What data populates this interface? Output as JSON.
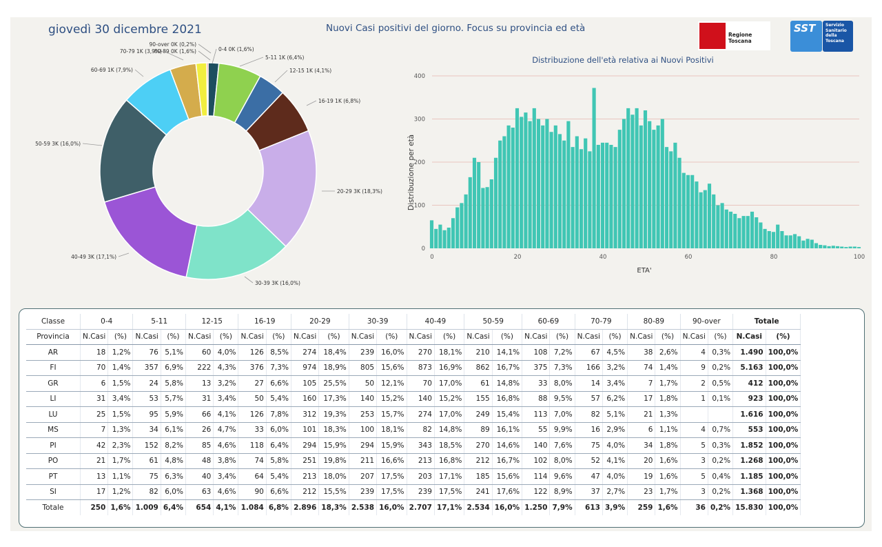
{
  "header": {
    "date": "giovedì 30 dicembre 2021",
    "title": "Nuovi Casi positivi del giorno. Focus su provincia ed età",
    "logo_regione": "Regione Toscana",
    "logo_sst_mark": "SST",
    "logo_sst_lines": [
      "Servizio",
      "Sanitario",
      "della",
      "Toscana"
    ]
  },
  "chart_data": [
    {
      "type": "pie",
      "title": "",
      "slices": [
        {
          "label": "0-4 0K (1,6%)",
          "value": 1.6,
          "color": "#1d4e5f"
        },
        {
          "label": "5-11 1K (6,4%)",
          "value": 6.4,
          "color": "#8fd14f"
        },
        {
          "label": "12-15 1K (4,1%)",
          "value": 4.1,
          "color": "#3b6ea5"
        },
        {
          "label": "16-19 1K (6,8%)",
          "value": 6.8,
          "color": "#5e2b1c"
        },
        {
          "label": "20-29 3K (18,3%)",
          "value": 18.3,
          "color": "#c9aee9"
        },
        {
          "label": "30-39 3K (16,0%)",
          "value": 16.0,
          "color": "#7fe3c9"
        },
        {
          "label": "40-49 3K (17,1%)",
          "value": 17.1,
          "color": "#9b55d6"
        },
        {
          "label": "50-59 3K (16,0%)",
          "value": 16.0,
          "color": "#3f5f68"
        },
        {
          "label": "60-69 1K (7,9%)",
          "value": 7.9,
          "color": "#4dcff5"
        },
        {
          "label": "70-79 1K (3,9%)",
          "value": 3.9,
          "color": "#d4ac4c"
        },
        {
          "label": "80-89 0K (1,6%)",
          "value": 1.6,
          "color": "#f1ee3f"
        },
        {
          "label": "90-over 0K (0,2%)",
          "value": 0.2,
          "color": "#e8231c"
        }
      ]
    },
    {
      "type": "bar",
      "title": "Distribuzione dell'età relativa ai Nuovi Positivi",
      "xlabel": "ETA'",
      "ylabel": "Distribuzione per età",
      "xlim": [
        0,
        100
      ],
      "ylim": [
        0,
        400
      ],
      "xticks": [
        0,
        20,
        40,
        60,
        80,
        100
      ],
      "yticks": [
        0,
        100,
        200,
        300,
        400
      ],
      "grid": "horizontal",
      "color": "#40c6b4",
      "x": [
        0,
        1,
        2,
        3,
        4,
        5,
        6,
        7,
        8,
        9,
        10,
        11,
        12,
        13,
        14,
        15,
        16,
        17,
        18,
        19,
        20,
        21,
        22,
        23,
        24,
        25,
        26,
        27,
        28,
        29,
        30,
        31,
        32,
        33,
        34,
        35,
        36,
        37,
        38,
        39,
        40,
        41,
        42,
        43,
        44,
        45,
        46,
        47,
        48,
        49,
        50,
        51,
        52,
        53,
        54,
        55,
        56,
        57,
        58,
        59,
        60,
        61,
        62,
        63,
        64,
        65,
        66,
        67,
        68,
        69,
        70,
        71,
        72,
        73,
        74,
        75,
        76,
        77,
        78,
        79,
        80,
        81,
        82,
        83,
        84,
        85,
        86,
        87,
        88,
        89,
        90,
        91,
        92,
        93,
        94,
        95,
        96,
        97,
        98,
        99,
        100
      ],
      "values": [
        65,
        45,
        55,
        42,
        48,
        70,
        95,
        105,
        125,
        165,
        210,
        200,
        140,
        142,
        160,
        210,
        250,
        260,
        285,
        280,
        325,
        305,
        315,
        295,
        325,
        300,
        285,
        300,
        270,
        285,
        265,
        250,
        295,
        235,
        260,
        230,
        255,
        225,
        372,
        240,
        245,
        245,
        240,
        235,
        275,
        300,
        325,
        310,
        325,
        285,
        320,
        295,
        275,
        285,
        300,
        235,
        225,
        245,
        210,
        175,
        170,
        170,
        155,
        130,
        135,
        150,
        125,
        100,
        105,
        90,
        85,
        80,
        70,
        75,
        75,
        85,
        72,
        60,
        45,
        40,
        38,
        55,
        40,
        30,
        30,
        33,
        28,
        18,
        22,
        20,
        12,
        8,
        7,
        5,
        6,
        5,
        4,
        3,
        4,
        4,
        3
      ]
    },
    {
      "type": "table",
      "corner_top": "Classe",
      "corner_bottom": "Provincia",
      "age_groups": [
        "0-4",
        "5-11",
        "12-15",
        "16-19",
        "20-29",
        "30-39",
        "40-49",
        "50-59",
        "60-69",
        "70-79",
        "80-89",
        "90-over"
      ],
      "total_group": "Totale",
      "sub_headers": [
        "N.Casi",
        "(%)"
      ],
      "rows": [
        {
          "prov": "AR",
          "cells": [
            [
              "18",
              "1,2%"
            ],
            [
              "76",
              "5,1%"
            ],
            [
              "60",
              "4,0%"
            ],
            [
              "126",
              "8,5%"
            ],
            [
              "274",
              "18,4%"
            ],
            [
              "239",
              "16,0%"
            ],
            [
              "270",
              "18,1%"
            ],
            [
              "210",
              "14,1%"
            ],
            [
              "108",
              "7,2%"
            ],
            [
              "67",
              "4,5%"
            ],
            [
              "38",
              "2,6%"
            ],
            [
              "4",
              "0,3%"
            ]
          ],
          "total": [
            "1.490",
            "100,0%"
          ]
        },
        {
          "prov": "FI",
          "cells": [
            [
              "70",
              "1,4%"
            ],
            [
              "357",
              "6,9%"
            ],
            [
              "222",
              "4,3%"
            ],
            [
              "376",
              "7,3%"
            ],
            [
              "974",
              "18,9%"
            ],
            [
              "805",
              "15,6%"
            ],
            [
              "873",
              "16,9%"
            ],
            [
              "862",
              "16,7%"
            ],
            [
              "375",
              "7,3%"
            ],
            [
              "166",
              "3,2%"
            ],
            [
              "74",
              "1,4%"
            ],
            [
              "9",
              "0,2%"
            ]
          ],
          "total": [
            "5.163",
            "100,0%"
          ]
        },
        {
          "prov": "GR",
          "cells": [
            [
              "6",
              "1,5%"
            ],
            [
              "24",
              "5,8%"
            ],
            [
              "13",
              "3,2%"
            ],
            [
              "27",
              "6,6%"
            ],
            [
              "105",
              "25,5%"
            ],
            [
              "50",
              "12,1%"
            ],
            [
              "70",
              "17,0%"
            ],
            [
              "61",
              "14,8%"
            ],
            [
              "33",
              "8,0%"
            ],
            [
              "14",
              "3,4%"
            ],
            [
              "7",
              "1,7%"
            ],
            [
              "2",
              "0,5%"
            ]
          ],
          "total": [
            "412",
            "100,0%"
          ]
        },
        {
          "prov": "LI",
          "cells": [
            [
              "31",
              "3,4%"
            ],
            [
              "53",
              "5,7%"
            ],
            [
              "31",
              "3,4%"
            ],
            [
              "50",
              "5,4%"
            ],
            [
              "160",
              "17,3%"
            ],
            [
              "140",
              "15,2%"
            ],
            [
              "140",
              "15,2%"
            ],
            [
              "155",
              "16,8%"
            ],
            [
              "88",
              "9,5%"
            ],
            [
              "57",
              "6,2%"
            ],
            [
              "17",
              "1,8%"
            ],
            [
              "1",
              "0,1%"
            ]
          ],
          "total": [
            "923",
            "100,0%"
          ]
        },
        {
          "prov": "LU",
          "cells": [
            [
              "25",
              "1,5%"
            ],
            [
              "95",
              "5,9%"
            ],
            [
              "66",
              "4,1%"
            ],
            [
              "126",
              "7,8%"
            ],
            [
              "312",
              "19,3%"
            ],
            [
              "253",
              "15,7%"
            ],
            [
              "274",
              "17,0%"
            ],
            [
              "249",
              "15,4%"
            ],
            [
              "113",
              "7,0%"
            ],
            [
              "82",
              "5,1%"
            ],
            [
              "21",
              "1,3%"
            ],
            [
              "",
              ""
            ]
          ],
          "total": [
            "1.616",
            "100,0%"
          ]
        },
        {
          "prov": "MS",
          "cells": [
            [
              "7",
              "1,3%"
            ],
            [
              "34",
              "6,1%"
            ],
            [
              "26",
              "4,7%"
            ],
            [
              "33",
              "6,0%"
            ],
            [
              "101",
              "18,3%"
            ],
            [
              "100",
              "18,1%"
            ],
            [
              "82",
              "14,8%"
            ],
            [
              "89",
              "16,1%"
            ],
            [
              "55",
              "9,9%"
            ],
            [
              "16",
              "2,9%"
            ],
            [
              "6",
              "1,1%"
            ],
            [
              "4",
              "0,7%"
            ]
          ],
          "total": [
            "553",
            "100,0%"
          ]
        },
        {
          "prov": "PI",
          "cells": [
            [
              "42",
              "2,3%"
            ],
            [
              "152",
              "8,2%"
            ],
            [
              "85",
              "4,6%"
            ],
            [
              "118",
              "6,4%"
            ],
            [
              "294",
              "15,9%"
            ],
            [
              "294",
              "15,9%"
            ],
            [
              "343",
              "18,5%"
            ],
            [
              "270",
              "14,6%"
            ],
            [
              "140",
              "7,6%"
            ],
            [
              "75",
              "4,0%"
            ],
            [
              "34",
              "1,8%"
            ],
            [
              "5",
              "0,3%"
            ]
          ],
          "total": [
            "1.852",
            "100,0%"
          ]
        },
        {
          "prov": "PO",
          "cells": [
            [
              "21",
              "1,7%"
            ],
            [
              "61",
              "4,8%"
            ],
            [
              "48",
              "3,8%"
            ],
            [
              "74",
              "5,8%"
            ],
            [
              "251",
              "19,8%"
            ],
            [
              "211",
              "16,6%"
            ],
            [
              "213",
              "16,8%"
            ],
            [
              "212",
              "16,7%"
            ],
            [
              "102",
              "8,0%"
            ],
            [
              "52",
              "4,1%"
            ],
            [
              "20",
              "1,6%"
            ],
            [
              "3",
              "0,2%"
            ]
          ],
          "total": [
            "1.268",
            "100,0%"
          ]
        },
        {
          "prov": "PT",
          "cells": [
            [
              "13",
              "1,1%"
            ],
            [
              "75",
              "6,3%"
            ],
            [
              "40",
              "3,4%"
            ],
            [
              "64",
              "5,4%"
            ],
            [
              "213",
              "18,0%"
            ],
            [
              "207",
              "17,5%"
            ],
            [
              "203",
              "17,1%"
            ],
            [
              "185",
              "15,6%"
            ],
            [
              "114",
              "9,6%"
            ],
            [
              "47",
              "4,0%"
            ],
            [
              "19",
              "1,6%"
            ],
            [
              "5",
              "0,4%"
            ]
          ],
          "total": [
            "1.185",
            "100,0%"
          ]
        },
        {
          "prov": "SI",
          "cells": [
            [
              "17",
              "1,2%"
            ],
            [
              "82",
              "6,0%"
            ],
            [
              "63",
              "4,6%"
            ],
            [
              "90",
              "6,6%"
            ],
            [
              "212",
              "15,5%"
            ],
            [
              "239",
              "17,5%"
            ],
            [
              "239",
              "17,5%"
            ],
            [
              "241",
              "17,6%"
            ],
            [
              "122",
              "8,9%"
            ],
            [
              "37",
              "2,7%"
            ],
            [
              "23",
              "1,7%"
            ],
            [
              "3",
              "0,2%"
            ]
          ],
          "total": [
            "1.368",
            "100,0%"
          ]
        },
        {
          "prov": "Totale",
          "cells": [
            [
              "250",
              "1,6%"
            ],
            [
              "1.009",
              "6,4%"
            ],
            [
              "654",
              "4,1%"
            ],
            [
              "1.084",
              "6,8%"
            ],
            [
              "2.896",
              "18,3%"
            ],
            [
              "2.538",
              "16,0%"
            ],
            [
              "2.707",
              "17,1%"
            ],
            [
              "2.534",
              "16,0%"
            ],
            [
              "1.250",
              "7,9%"
            ],
            [
              "613",
              "3,9%"
            ],
            [
              "259",
              "1,6%"
            ],
            [
              "36",
              "0,2%"
            ]
          ],
          "total": [
            "15.830",
            "100,0%"
          ]
        }
      ]
    }
  ]
}
